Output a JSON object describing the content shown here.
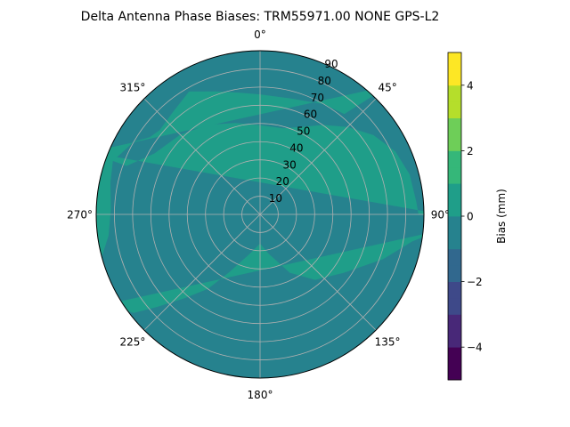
{
  "chart_data": {
    "type": "polar-contour",
    "title": "Delta Antenna Phase Biases: TRM55971.00     NONE GPS-L2",
    "azimuth_labels": [
      {
        "deg": 0,
        "text": "0°"
      },
      {
        "deg": 45,
        "text": "45°"
      },
      {
        "deg": 90,
        "text": "90°"
      },
      {
        "deg": 135,
        "text": "135°"
      },
      {
        "deg": 180,
        "text": "180°"
      },
      {
        "deg": 225,
        "text": "225°"
      },
      {
        "deg": 270,
        "text": "270°"
      },
      {
        "deg": 315,
        "text": "315°"
      }
    ],
    "radial_ticks": [
      10,
      20,
      30,
      40,
      50,
      60,
      70,
      80,
      90
    ],
    "radial_range": [
      0,
      90
    ],
    "grid": true,
    "colorbar": {
      "label": "Bias (mm)",
      "range": [
        -5,
        5
      ],
      "levels": [
        -5,
        -4.5,
        -4,
        -3.5,
        -3,
        -2.5,
        -2,
        -1.5,
        -1,
        -0.5,
        0,
        0.5,
        1,
        1.5,
        2,
        2.5,
        3,
        3.5,
        4,
        4.5,
        5
      ],
      "ticks": [
        -4,
        -2,
        0,
        2,
        4
      ],
      "tick_labels": [
        "−4",
        "−2",
        "0",
        "2",
        "4"
      ],
      "colors": [
        "#440154",
        "#482878",
        "#3e4989",
        "#31688e",
        "#26828e",
        "#1f9e89",
        "#35b779",
        "#6ece58",
        "#b5de2b",
        "#fde725"
      ]
    },
    "field_colors": {
      "low": "#26828e",
      "high": "#1f9e89",
      "edge": "#35b779"
    }
  }
}
